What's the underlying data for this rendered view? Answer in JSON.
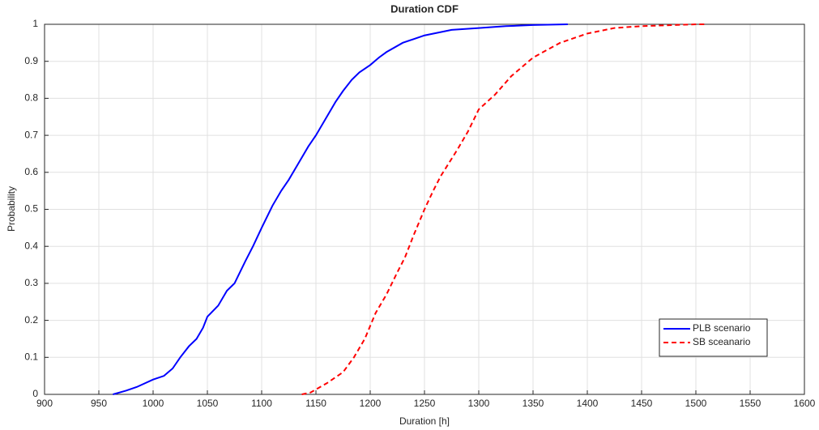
{
  "chart_data": {
    "type": "line",
    "title": "Duration CDF",
    "xlabel": "Duration [h]",
    "ylabel": "Probability",
    "xlim": [
      900,
      1600
    ],
    "xticks": [
      900,
      950,
      1000,
      1050,
      1100,
      1150,
      1200,
      1250,
      1300,
      1350,
      1400,
      1450,
      1500,
      1550,
      1600
    ],
    "ylim": [
      0,
      1
    ],
    "yticks": [
      0,
      0.1,
      0.2,
      0.3,
      0.4,
      0.5,
      0.6,
      0.7,
      0.8,
      0.9,
      1
    ],
    "grid": true,
    "legend": "lower right",
    "series": [
      {
        "name": "PLB scenario",
        "color": "#0000ff",
        "linestyle": "solid",
        "x": [
          963,
          975,
          985,
          1000,
          1010,
          1018,
          1025,
          1033,
          1040,
          1046,
          1050,
          1060,
          1068,
          1075,
          1085,
          1092,
          1100,
          1110,
          1118,
          1125,
          1135,
          1143,
          1150,
          1160,
          1168,
          1175,
          1183,
          1190,
          1200,
          1208,
          1215,
          1230,
          1250,
          1275,
          1300,
          1325,
          1350,
          1382
        ],
        "values": [
          0,
          0.01,
          0.02,
          0.04,
          0.05,
          0.07,
          0.1,
          0.13,
          0.15,
          0.18,
          0.21,
          0.24,
          0.28,
          0.3,
          0.36,
          0.4,
          0.45,
          0.51,
          0.55,
          0.58,
          0.63,
          0.67,
          0.7,
          0.75,
          0.79,
          0.82,
          0.85,
          0.87,
          0.89,
          0.91,
          0.925,
          0.95,
          0.97,
          0.985,
          0.99,
          0.995,
          0.998,
          1
        ]
      },
      {
        "name": "SB sceanario",
        "color": "#ff0000",
        "linestyle": "dashed",
        "x": [
          1137,
          1145,
          1160,
          1175,
          1185,
          1195,
          1205,
          1215,
          1225,
          1232,
          1240,
          1250,
          1258,
          1265,
          1280,
          1290,
          1300,
          1315,
          1330,
          1350,
          1375,
          1400,
          1425,
          1450,
          1500,
          1508
        ],
        "values": [
          0,
          0.005,
          0.03,
          0.06,
          0.1,
          0.15,
          0.22,
          0.27,
          0.33,
          0.37,
          0.43,
          0.5,
          0.55,
          0.59,
          0.66,
          0.71,
          0.77,
          0.81,
          0.86,
          0.91,
          0.95,
          0.975,
          0.99,
          0.995,
          1,
          1
        ]
      }
    ]
  }
}
